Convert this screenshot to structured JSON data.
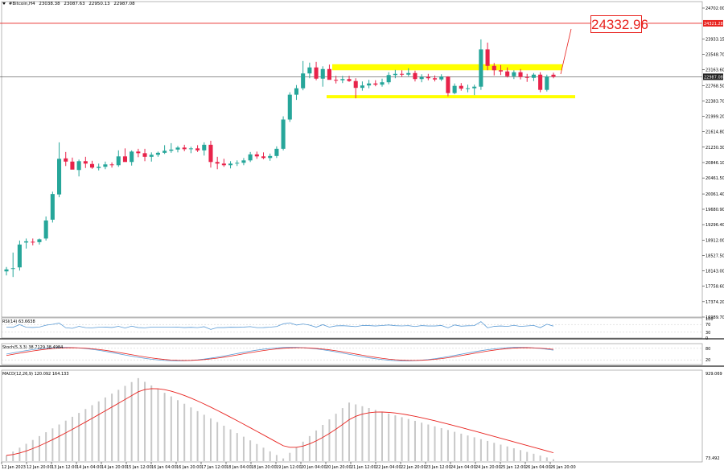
{
  "header": {
    "symbol": "#Bitcoin,H4",
    "ohlc": [
      "23038.38",
      "23087.63",
      "22950.13",
      "22987.08"
    ]
  },
  "annotations": {
    "target_value": "24332.96"
  },
  "colors": {
    "bull": "#26a69a",
    "bear": "#e8234a",
    "zone": "#ffff00",
    "target_line": "#e8231f",
    "rsi_line": "#5b9bd5",
    "macd_signal": "#e8231f",
    "macd_hist": "#c8c8c8",
    "stoch_main": "#5b9bd5",
    "stoch_signal": "#e8231f"
  },
  "price_axis": {
    "labels": [
      "24702.00",
      "24321.28",
      "23933.15",
      "23548.70",
      "23163.60",
      "22987.08",
      "22768.50",
      "22383.70",
      "21999.20",
      "21614.80",
      "21230.30",
      "20846.10",
      "20461.50",
      "20061.40",
      "19680.90",
      "19296.40",
      "18912.00",
      "18527.50",
      "18143.00",
      "17758.60",
      "17374.20",
      "16989.70"
    ],
    "current_price": "22987.08",
    "target_line_price": "24321.28"
  },
  "time_axis": {
    "labels": [
      "12 Jan 2023",
      "12 Jan 20:00",
      "13 Jan 12:00",
      "14 Jan 04:00",
      "14 Jan 20:00",
      "15 Jan 12:00",
      "16 Jan 04:00",
      "16 Jan 20:00",
      "17 Jan 12:00",
      "18 Jan 04:00",
      "18 Jan 20:00",
      "19 Jan 12:00",
      "20 Jan 04:00",
      "20 Jan 20:00",
      "21 Jan 12:00",
      "22 Jan 04:00",
      "22 Jan 20:00",
      "23 Jan 12:00",
      "24 Jan 04:00",
      "24 Jan 20:00",
      "25 Jan 12:00",
      "26 Jan 04:00",
      "26 Jan 20:00"
    ]
  },
  "indicators": {
    "rsi": {
      "label": "RSI(14) 63.6638",
      "levels": [
        "100",
        "70",
        "30",
        "0"
      ]
    },
    "stoch": {
      "label": "Stoch(5,3,3) 38.7129 38.4984",
      "levels": [
        "80",
        "20"
      ]
    },
    "macd": {
      "label": "MACD(12,26,9) 120.092 164.133",
      "top_label": "929.069",
      "bottom_label": "73.492"
    }
  },
  "chart_data": {
    "type": "candlestick",
    "title": "#Bitcoin,H4",
    "y_range": [
      16989.7,
      24702.0
    ],
    "time_labels": [
      "12 Jan 2023",
      "12 Jan 20:00",
      "13 Jan 12:00",
      "14 Jan 04:00",
      "14 Jan 20:00",
      "15 Jan 12:00",
      "16 Jan 04:00",
      "16 Jan 20:00",
      "17 Jan 12:00",
      "18 Jan 04:00",
      "18 Jan 20:00",
      "19 Jan 12:00",
      "20 Jan 04:00",
      "20 Jan 20:00",
      "21 Jan 12:00",
      "22 Jan 04:00",
      "22 Jan 20:00",
      "23 Jan 12:00",
      "24 Jan 04:00",
      "24 Jan 20:00",
      "25 Jan 12:00",
      "26 Jan 04:00",
      "26 Jan 20:00"
    ],
    "candles": [
      {
        "o": 18130,
        "h": 18240,
        "l": 18030,
        "c": 18180
      },
      {
        "o": 18190,
        "h": 18600,
        "l": 17990,
        "c": 18210
      },
      {
        "o": 18230,
        "h": 18900,
        "l": 18150,
        "c": 18800
      },
      {
        "o": 18850,
        "h": 18950,
        "l": 18700,
        "c": 18880
      },
      {
        "o": 18870,
        "h": 18950,
        "l": 18780,
        "c": 18850
      },
      {
        "o": 18860,
        "h": 18950,
        "l": 18800,
        "c": 18930
      },
      {
        "o": 18950,
        "h": 19500,
        "l": 18900,
        "c": 19400
      },
      {
        "o": 19420,
        "h": 20120,
        "l": 19350,
        "c": 20060
      },
      {
        "o": 20050,
        "h": 21350,
        "l": 19980,
        "c": 20940
      },
      {
        "o": 20950,
        "h": 21110,
        "l": 20760,
        "c": 20870
      },
      {
        "o": 20870,
        "h": 20970,
        "l": 20680,
        "c": 20670
      },
      {
        "o": 20660,
        "h": 20920,
        "l": 20500,
        "c": 20880
      },
      {
        "o": 20880,
        "h": 20990,
        "l": 20710,
        "c": 20820
      },
      {
        "o": 20810,
        "h": 20890,
        "l": 20690,
        "c": 20720
      },
      {
        "o": 20710,
        "h": 20820,
        "l": 20650,
        "c": 20740
      },
      {
        "o": 20740,
        "h": 20870,
        "l": 20680,
        "c": 20800
      },
      {
        "o": 20800,
        "h": 20850,
        "l": 20720,
        "c": 20780
      },
      {
        "o": 20780,
        "h": 21150,
        "l": 20740,
        "c": 21000
      },
      {
        "o": 21000,
        "h": 21200,
        "l": 20880,
        "c": 20860
      },
      {
        "o": 20860,
        "h": 21150,
        "l": 20770,
        "c": 21120
      },
      {
        "o": 21120,
        "h": 21190,
        "l": 20980,
        "c": 21080
      },
      {
        "o": 21080,
        "h": 21190,
        "l": 20880,
        "c": 20990
      },
      {
        "o": 20990,
        "h": 21100,
        "l": 20870,
        "c": 21040
      },
      {
        "o": 21040,
        "h": 21120,
        "l": 20990,
        "c": 21090
      },
      {
        "o": 21090,
        "h": 21280,
        "l": 21060,
        "c": 21140
      },
      {
        "o": 21140,
        "h": 21330,
        "l": 21090,
        "c": 21170
      },
      {
        "o": 21170,
        "h": 21260,
        "l": 21100,
        "c": 21220
      },
      {
        "o": 21220,
        "h": 21290,
        "l": 21130,
        "c": 21180
      },
      {
        "o": 21180,
        "h": 21240,
        "l": 21080,
        "c": 21200
      },
      {
        "o": 21200,
        "h": 21280,
        "l": 21110,
        "c": 21150
      },
      {
        "o": 21150,
        "h": 21350,
        "l": 21020,
        "c": 21290
      },
      {
        "o": 21290,
        "h": 21390,
        "l": 20720,
        "c": 20860
      },
      {
        "o": 20860,
        "h": 20990,
        "l": 20680,
        "c": 20820
      },
      {
        "o": 20820,
        "h": 20940,
        "l": 20740,
        "c": 20780
      },
      {
        "o": 20780,
        "h": 20880,
        "l": 20700,
        "c": 20820
      },
      {
        "o": 20820,
        "h": 20900,
        "l": 20760,
        "c": 20840
      },
      {
        "o": 20840,
        "h": 20960,
        "l": 20780,
        "c": 20900
      },
      {
        "o": 20900,
        "h": 21110,
        "l": 20860,
        "c": 21050
      },
      {
        "o": 21050,
        "h": 21120,
        "l": 20940,
        "c": 21000
      },
      {
        "o": 21000,
        "h": 21100,
        "l": 20930,
        "c": 20960
      },
      {
        "o": 20960,
        "h": 21070,
        "l": 20890,
        "c": 21010
      },
      {
        "o": 21010,
        "h": 21250,
        "l": 20960,
        "c": 21190
      },
      {
        "o": 21190,
        "h": 22000,
        "l": 21150,
        "c": 21920
      },
      {
        "o": 21920,
        "h": 22600,
        "l": 21860,
        "c": 22540
      },
      {
        "o": 22540,
        "h": 22780,
        "l": 22410,
        "c": 22700
      },
      {
        "o": 22700,
        "h": 23380,
        "l": 22650,
        "c": 23070
      },
      {
        "o": 23070,
        "h": 23340,
        "l": 22950,
        "c": 23220
      },
      {
        "o": 23220,
        "h": 23360,
        "l": 22900,
        "c": 22940
      },
      {
        "o": 22940,
        "h": 23250,
        "l": 22740,
        "c": 23180
      },
      {
        "o": 23180,
        "h": 23290,
        "l": 22950,
        "c": 22910
      },
      {
        "o": 22910,
        "h": 23010,
        "l": 22820,
        "c": 22900
      },
      {
        "o": 22900,
        "h": 23010,
        "l": 22830,
        "c": 22930
      },
      {
        "o": 22930,
        "h": 23010,
        "l": 22860,
        "c": 22880
      },
      {
        "o": 22880,
        "h": 22950,
        "l": 22450,
        "c": 22710
      },
      {
        "o": 22710,
        "h": 22870,
        "l": 22640,
        "c": 22770
      },
      {
        "o": 22770,
        "h": 22910,
        "l": 22700,
        "c": 22820
      },
      {
        "o": 22820,
        "h": 22900,
        "l": 22750,
        "c": 22790
      },
      {
        "o": 22790,
        "h": 22940,
        "l": 22740,
        "c": 22850
      },
      {
        "o": 22850,
        "h": 23100,
        "l": 22800,
        "c": 23030
      },
      {
        "o": 23030,
        "h": 23160,
        "l": 22950,
        "c": 23060
      },
      {
        "o": 23060,
        "h": 23150,
        "l": 22980,
        "c": 23040
      },
      {
        "o": 23040,
        "h": 23200,
        "l": 23000,
        "c": 23080
      },
      {
        "o": 23080,
        "h": 23140,
        "l": 22870,
        "c": 22930
      },
      {
        "o": 22930,
        "h": 23050,
        "l": 22850,
        "c": 22980
      },
      {
        "o": 22980,
        "h": 23060,
        "l": 22900,
        "c": 22950
      },
      {
        "o": 22950,
        "h": 23020,
        "l": 22870,
        "c": 22920
      },
      {
        "o": 22920,
        "h": 23050,
        "l": 22880,
        "c": 22990
      },
      {
        "o": 22990,
        "h": 23000,
        "l": 22500,
        "c": 22580
      },
      {
        "o": 22580,
        "h": 22820,
        "l": 22550,
        "c": 22760
      },
      {
        "o": 22760,
        "h": 22830,
        "l": 22640,
        "c": 22690
      },
      {
        "o": 22690,
        "h": 22790,
        "l": 22600,
        "c": 22700
      },
      {
        "o": 22700,
        "h": 22790,
        "l": 22530,
        "c": 22740
      },
      {
        "o": 22740,
        "h": 23920,
        "l": 22660,
        "c": 23670
      },
      {
        "o": 23670,
        "h": 23840,
        "l": 23150,
        "c": 23260
      },
      {
        "o": 23260,
        "h": 23330,
        "l": 23020,
        "c": 23150
      },
      {
        "o": 23150,
        "h": 23280,
        "l": 23030,
        "c": 23120
      },
      {
        "o": 23120,
        "h": 23220,
        "l": 22970,
        "c": 23000
      },
      {
        "o": 23000,
        "h": 23150,
        "l": 22930,
        "c": 23100
      },
      {
        "o": 23100,
        "h": 23180,
        "l": 22920,
        "c": 22980
      },
      {
        "o": 22980,
        "h": 23060,
        "l": 22860,
        "c": 22960
      },
      {
        "o": 22960,
        "h": 23080,
        "l": 22880,
        "c": 23040
      },
      {
        "o": 23040,
        "h": 23100,
        "l": 22600,
        "c": 22660
      },
      {
        "o": 22660,
        "h": 23040,
        "l": 22620,
        "c": 22990
      },
      {
        "o": 23038.38,
        "h": 23087.63,
        "l": 22950.13,
        "c": 22987.08
      }
    ],
    "support_zone": [
      22450,
      22530
    ],
    "resistance_zone": [
      23150,
      23300
    ],
    "target_level": 24321.28,
    "target_annotation": 24332.96,
    "rsi": [
      63.66
    ],
    "macd": {
      "main": 120.092,
      "signal": 164.133,
      "range": [
        73.492,
        929.069
      ]
    },
    "stoch": {
      "main": 38.7129,
      "signal": 38.4984
    }
  }
}
